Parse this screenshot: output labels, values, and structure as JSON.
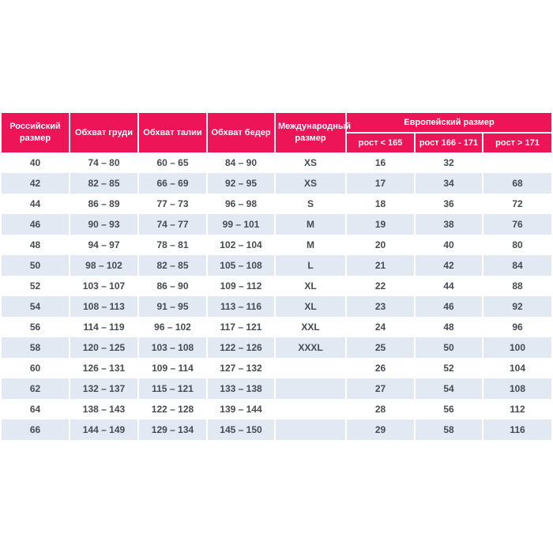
{
  "colors": {
    "header_bg": "#ED1458",
    "header_text": "#ffffff",
    "row_bg": "#ffffff",
    "row_alt_bg": "#E2E9F2",
    "body_text": "#454B52",
    "separator": "#ffffff"
  },
  "chart_data": {
    "type": "table",
    "title": "",
    "headers": {
      "russian_size": "Российский размер",
      "chest": "Обхват груди",
      "waist": "Обхват талии",
      "hips": "Обхват бедер",
      "international_size": "Международный размер",
      "european_size": "Европейский размер",
      "height_lt_165": "рост < 165",
      "height_166_171": "рост 166 - 171",
      "height_gt_171": "рост > 171"
    },
    "rows": [
      [
        "40",
        "74 – 80",
        "60 – 65",
        "84 – 90",
        "XS",
        "16",
        "32",
        ""
      ],
      [
        "42",
        "82 – 85",
        "66 – 69",
        "92 – 95",
        "XS",
        "17",
        "34",
        "68"
      ],
      [
        "44",
        "86 – 89",
        "77 – 73",
        "96 – 98",
        "S",
        "18",
        "36",
        "72"
      ],
      [
        "46",
        "90 – 93",
        "74 – 77",
        "99 – 101",
        "M",
        "19",
        "38",
        "76"
      ],
      [
        "48",
        "94 – 97",
        "78 – 81",
        "102 – 104",
        "M",
        "20",
        "40",
        "80"
      ],
      [
        "50",
        "98 – 102",
        "82 – 85",
        "105 – 108",
        "L",
        "21",
        "42",
        "84"
      ],
      [
        "52",
        "103 – 107",
        "86 – 90",
        "109 – 112",
        "XL",
        "22",
        "44",
        "88"
      ],
      [
        "54",
        "108 – 113",
        "91 – 95",
        "113 – 116",
        "XL",
        "23",
        "46",
        "92"
      ],
      [
        "56",
        "114 – 119",
        "96 – 102",
        "117 – 121",
        "XXL",
        "24",
        "48",
        "96"
      ],
      [
        "58",
        "120 – 125",
        "103 – 108",
        "122 – 126",
        "XXXL",
        "25",
        "50",
        "100"
      ],
      [
        "60",
        "126 – 131",
        "109 – 114",
        "127 – 132",
        "",
        "26",
        "52",
        "104"
      ],
      [
        "62",
        "132 – 137",
        "115 – 121",
        "133 – 138",
        "",
        "27",
        "54",
        "108"
      ],
      [
        "64",
        "138 – 143",
        "122 – 128",
        "139 – 144",
        "",
        "28",
        "56",
        "112"
      ],
      [
        "66",
        "144 – 149",
        "129 – 134",
        "145 – 150",
        "",
        "29",
        "58",
        "116"
      ]
    ]
  }
}
